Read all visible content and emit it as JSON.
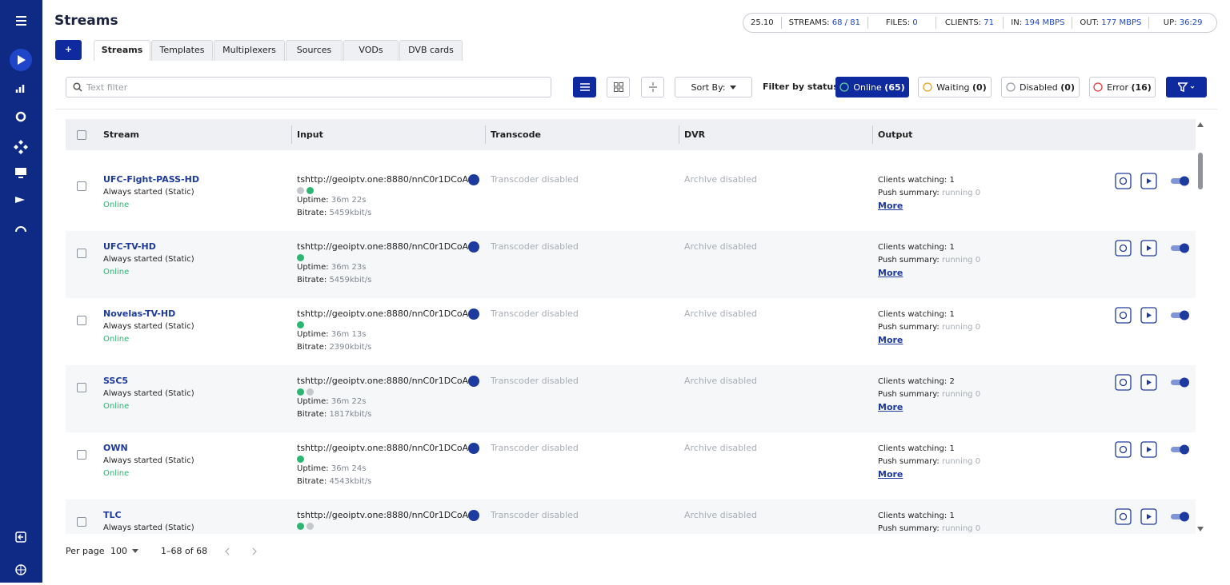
{
  "header": {
    "title": "Streams",
    "version": "25.10",
    "stats": [
      {
        "label": "STREAMS:",
        "value": "68 / 81"
      },
      {
        "label": "FILES:",
        "value": "0"
      },
      {
        "label": "CLIENTS:",
        "value": "71"
      },
      {
        "label": "IN:",
        "value": "194 MBPS"
      },
      {
        "label": "OUT:",
        "value": "177 MBPS"
      },
      {
        "label": "UP:",
        "value": "36:29"
      }
    ]
  },
  "tabs": {
    "add": "+",
    "items": [
      "Streams",
      "Templates",
      "Multiplexers",
      "Sources",
      "VODs",
      "DVB cards"
    ]
  },
  "toolbar": {
    "filter_placeholder": "Text filter",
    "sort": "Sort By:",
    "filter_label": "Filter by status:",
    "statuses": [
      {
        "label": "Online",
        "count": "(65)",
        "color": "#2bb673"
      },
      {
        "label": "Waiting",
        "count": "(0)",
        "color": "#f0a020"
      },
      {
        "label": "Disabled",
        "count": "(0)",
        "color": "#9aa0a8"
      },
      {
        "label": "Error",
        "count": "(16)",
        "color": "#e23b3b"
      }
    ]
  },
  "table": {
    "columns": [
      "Stream",
      "Input",
      "Transcode",
      "DVR",
      "Output"
    ],
    "labels": {
      "uptime": "Uptime:",
      "bitrate": "Bitrate:",
      "clients": "Clients watching:",
      "push": "Push summary:",
      "more": "More"
    },
    "rows": [
      {
        "name": "UFC-Fight-PASS-HD",
        "mode": "Always started (Static)",
        "status": "Online",
        "input": "tshttp://geoiptv.one:8880/nnC0r1DCoA...",
        "dots": [
          "#c3c7cd",
          "#2bb673"
        ],
        "uptime": "36m 22s",
        "bitrate": "5459kbit/s",
        "transcode": "Transcoder disabled",
        "dvr": "Archive disabled",
        "clients": "1",
        "push": "running 0"
      },
      {
        "name": "UFC-TV-HD",
        "mode": "Always started (Static)",
        "status": "Online",
        "input": "tshttp://geoiptv.one:8880/nnC0r1DCoA...",
        "dots": [
          "#2bb673"
        ],
        "uptime": "36m 23s",
        "bitrate": "5459kbit/s",
        "transcode": "Transcoder disabled",
        "dvr": "Archive disabled",
        "clients": "1",
        "push": "running 0"
      },
      {
        "name": "Novelas-TV-HD",
        "mode": "Always started (Static)",
        "status": "Online",
        "input": "tshttp://geoiptv.one:8880/nnC0r1DCoA...",
        "dots": [
          "#2bb673"
        ],
        "uptime": "36m 13s",
        "bitrate": "2390kbit/s",
        "transcode": "Transcoder disabled",
        "dvr": "Archive disabled",
        "clients": "1",
        "push": "running 0"
      },
      {
        "name": "SSC5",
        "mode": "Always started (Static)",
        "status": "Online",
        "input": "tshttp://geoiptv.one:8880/nnC0r1DCoA...",
        "dots": [
          "#2bb673",
          "#c3c7cd"
        ],
        "uptime": "36m 22s",
        "bitrate": "1817kbit/s",
        "transcode": "Transcoder disabled",
        "dvr": "Archive disabled",
        "clients": "2",
        "push": "running 0"
      },
      {
        "name": "OWN",
        "mode": "Always started (Static)",
        "status": "Online",
        "input": "tshttp://geoiptv.one:8880/nnC0r1DCoA...",
        "dots": [
          "#2bb673"
        ],
        "uptime": "36m 24s",
        "bitrate": "4543kbit/s",
        "transcode": "Transcoder disabled",
        "dvr": "Archive disabled",
        "clients": "1",
        "push": "running 0"
      },
      {
        "name": "TLC",
        "mode": "Always started (Static)",
        "input": "tshttp://geoiptv.one:8880/nnC0r1DCoA...",
        "dots": [
          "#2bb673",
          "#c3c7cd"
        ],
        "transcode": "Transcoder disabled",
        "dvr": "Archive disabled",
        "clients": "1",
        "push": "running 0"
      }
    ]
  },
  "footer": {
    "per_page_label": "Per page",
    "per_page": "100",
    "range": "1–68 of 68"
  }
}
